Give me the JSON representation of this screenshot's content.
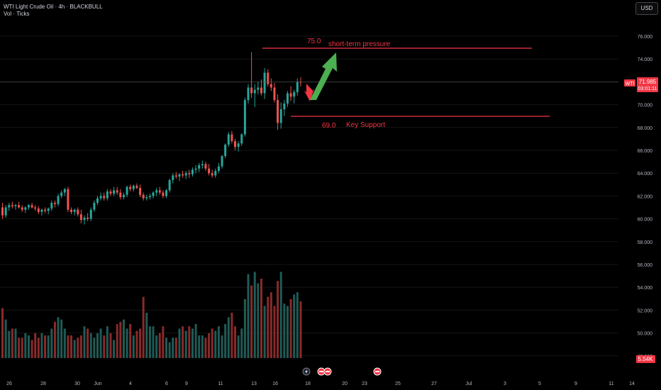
{
  "header": {
    "title": "WTI Light Crude Oil · 4h · BLACKBULL",
    "indicator": "Vol · Ticks",
    "currency": "USD"
  },
  "colors": {
    "up": "#26a69a",
    "down": "#ef5350",
    "annotation": "#f23645",
    "arrow_up": "#4caf50",
    "text": "#d1d4dc",
    "grid": "#141414"
  },
  "price_badge": {
    "symbol": "WTI",
    "price": "71.985",
    "countdown": "03:01:11"
  },
  "volume_badge": "5.54K",
  "annotations": {
    "resistance": {
      "value_label": "75.0",
      "text": "short-term pressure",
      "level": 75.0
    },
    "support": {
      "value_label": "69.0",
      "text": "Key Support",
      "level": 69.0
    }
  },
  "chart_data": {
    "type": "candlestick",
    "y_ticks": [
      "76.000",
      "74.000",
      "72.000",
      "70.000",
      "68.000",
      "66.000",
      "64.000",
      "62.000",
      "60.000",
      "58.000",
      "56.000",
      "54.000",
      "52.000",
      "50.000",
      "48.000"
    ],
    "ylim": [
      47.5,
      77
    ],
    "x_ticks": [
      "26",
      "28",
      "30",
      "Jun",
      "4",
      "6",
      "9",
      "11",
      "13",
      "16",
      "18",
      "20",
      "23",
      "25",
      "27",
      "Jul",
      "3",
      "5",
      "9",
      "11",
      "14"
    ],
    "last_price": 71.985,
    "ohlc": [
      [
        61.0,
        61.4,
        60.0,
        60.3
      ],
      [
        60.3,
        61.2,
        60.1,
        61.0
      ],
      [
        61.0,
        61.4,
        60.7,
        61.2
      ],
      [
        61.2,
        61.5,
        60.9,
        61.1
      ],
      [
        61.1,
        61.3,
        60.8,
        61.2
      ],
      [
        61.2,
        61.5,
        60.9,
        61.0
      ],
      [
        61.0,
        61.2,
        60.6,
        60.8
      ],
      [
        60.8,
        61.1,
        60.5,
        61.0
      ],
      [
        61.0,
        61.3,
        60.8,
        61.2
      ],
      [
        61.2,
        61.4,
        60.9,
        61.0
      ],
      [
        61.0,
        61.2,
        60.7,
        60.9
      ],
      [
        60.9,
        61.1,
        60.4,
        60.6
      ],
      [
        60.6,
        60.9,
        60.3,
        60.8
      ],
      [
        60.8,
        61.0,
        60.5,
        60.7
      ],
      [
        60.7,
        61.0,
        60.4,
        60.9
      ],
      [
        60.9,
        61.6,
        60.7,
        61.4
      ],
      [
        61.4,
        61.6,
        61.0,
        61.3
      ],
      [
        61.3,
        62.2,
        61.1,
        62.0
      ],
      [
        62.0,
        62.5,
        61.8,
        62.3
      ],
      [
        62.3,
        62.7,
        62.0,
        62.6
      ],
      [
        62.6,
        62.8,
        60.6,
        60.8
      ],
      [
        60.8,
        61.0,
        60.4,
        60.6
      ],
      [
        60.6,
        60.9,
        60.3,
        60.8
      ],
      [
        60.8,
        61.0,
        60.2,
        60.4
      ],
      [
        60.4,
        60.8,
        59.6,
        59.9
      ],
      [
        59.9,
        60.3,
        59.5,
        60.1
      ],
      [
        60.1,
        60.5,
        59.8,
        60.0
      ],
      [
        60.0,
        61.0,
        59.8,
        60.8
      ],
      [
        60.8,
        61.6,
        60.6,
        61.4
      ],
      [
        61.4,
        62.0,
        61.2,
        61.8
      ],
      [
        61.8,
        62.3,
        61.6,
        62.0
      ],
      [
        62.0,
        62.3,
        61.6,
        61.8
      ],
      [
        61.8,
        62.6,
        61.6,
        62.4
      ],
      [
        62.4,
        62.6,
        62.0,
        62.2
      ],
      [
        62.2,
        62.8,
        62.0,
        62.5
      ],
      [
        62.5,
        62.8,
        62.1,
        62.3
      ],
      [
        62.3,
        62.6,
        61.7,
        61.9
      ],
      [
        61.9,
        62.3,
        61.7,
        62.1
      ],
      [
        62.1,
        62.9,
        61.9,
        62.8
      ],
      [
        62.8,
        63.0,
        62.4,
        62.6
      ],
      [
        62.6,
        63.0,
        62.4,
        62.9
      ],
      [
        62.9,
        63.1,
        62.6,
        62.7
      ],
      [
        62.7,
        63.0,
        61.9,
        62.1
      ],
      [
        62.1,
        62.3,
        61.6,
        61.8
      ],
      [
        61.8,
        62.1,
        61.6,
        61.9
      ],
      [
        61.9,
        62.2,
        61.7,
        62.0
      ],
      [
        62.0,
        62.4,
        61.8,
        62.3
      ],
      [
        62.3,
        62.7,
        62.0,
        62.5
      ],
      [
        62.5,
        62.8,
        62.1,
        62.3
      ],
      [
        62.3,
        62.5,
        61.8,
        62.0
      ],
      [
        62.0,
        62.6,
        61.8,
        62.5
      ],
      [
        62.5,
        63.5,
        62.3,
        63.4
      ],
      [
        63.4,
        64.0,
        63.1,
        63.8
      ],
      [
        63.8,
        64.1,
        63.5,
        63.7
      ],
      [
        63.7,
        64.0,
        63.3,
        63.9
      ],
      [
        63.9,
        64.2,
        63.6,
        63.8
      ],
      [
        63.8,
        64.2,
        63.5,
        64.0
      ],
      [
        64.0,
        64.3,
        63.6,
        63.9
      ],
      [
        63.9,
        64.5,
        63.7,
        64.3
      ],
      [
        64.3,
        64.7,
        64.0,
        64.4
      ],
      [
        64.4,
        64.9,
        64.1,
        64.7
      ],
      [
        64.7,
        65.1,
        64.4,
        64.8
      ],
      [
        64.8,
        65.0,
        64.2,
        64.4
      ],
      [
        64.4,
        64.8,
        63.8,
        64.0
      ],
      [
        64.0,
        64.3,
        63.6,
        63.8
      ],
      [
        63.8,
        64.4,
        63.6,
        64.2
      ],
      [
        64.2,
        64.9,
        64.0,
        64.6
      ],
      [
        64.6,
        65.6,
        64.4,
        65.5
      ],
      [
        65.5,
        66.6,
        65.3,
        66.5
      ],
      [
        66.5,
        67.6,
        66.3,
        67.4
      ],
      [
        67.4,
        67.7,
        66.6,
        66.8
      ],
      [
        66.8,
        67.0,
        66.0,
        66.3
      ],
      [
        66.3,
        66.8,
        65.9,
        66.6
      ],
      [
        66.6,
        67.5,
        66.4,
        67.4
      ],
      [
        67.4,
        70.6,
        67.2,
        70.4
      ],
      [
        70.4,
        71.8,
        70.1,
        71.5
      ],
      [
        71.5,
        74.6,
        70.6,
        71.0
      ],
      [
        71.0,
        71.8,
        69.8,
        71.3
      ],
      [
        71.3,
        72.0,
        70.9,
        71.5
      ],
      [
        71.5,
        72.2,
        70.8,
        71.0
      ],
      [
        71.0,
        73.2,
        70.5,
        72.8
      ],
      [
        72.8,
        73.1,
        71.6,
        71.8
      ],
      [
        71.8,
        72.3,
        71.2,
        71.5
      ],
      [
        71.5,
        71.9,
        70.2,
        70.4
      ],
      [
        70.4,
        70.9,
        67.8,
        68.4
      ],
      [
        68.4,
        70.2,
        67.9,
        69.6
      ],
      [
        69.6,
        70.4,
        69.0,
        70.1
      ],
      [
        70.1,
        71.2,
        69.8,
        71.0
      ],
      [
        71.0,
        71.6,
        70.3,
        70.7
      ],
      [
        70.7,
        71.3,
        70.1,
        71.1
      ],
      [
        71.1,
        72.3,
        70.8,
        72.0
      ],
      [
        72.0,
        72.4,
        71.6,
        71.985
      ]
    ],
    "volume": [
      22,
      17,
      12,
      13,
      13,
      9,
      9,
      11,
      10,
      8,
      11,
      9,
      11,
      10,
      10,
      13,
      16,
      18,
      17,
      13,
      10,
      10,
      8,
      9,
      10,
      14,
      13,
      11,
      9,
      11,
      13,
      10,
      14,
      11,
      8,
      15,
      16,
      17,
      13,
      15,
      10,
      12,
      13,
      27,
      20,
      14,
      14,
      10,
      11,
      14,
      9,
      7,
      9,
      9,
      13,
      14,
      12,
      14,
      13,
      15,
      10,
      10,
      9,
      11,
      13,
      12,
      14,
      10,
      15,
      18,
      20,
      14,
      10,
      13,
      26,
      37,
      32,
      38,
      33,
      35,
      23,
      27,
      29,
      23,
      34,
      38,
      24,
      23,
      26,
      28,
      29,
      25
    ]
  }
}
